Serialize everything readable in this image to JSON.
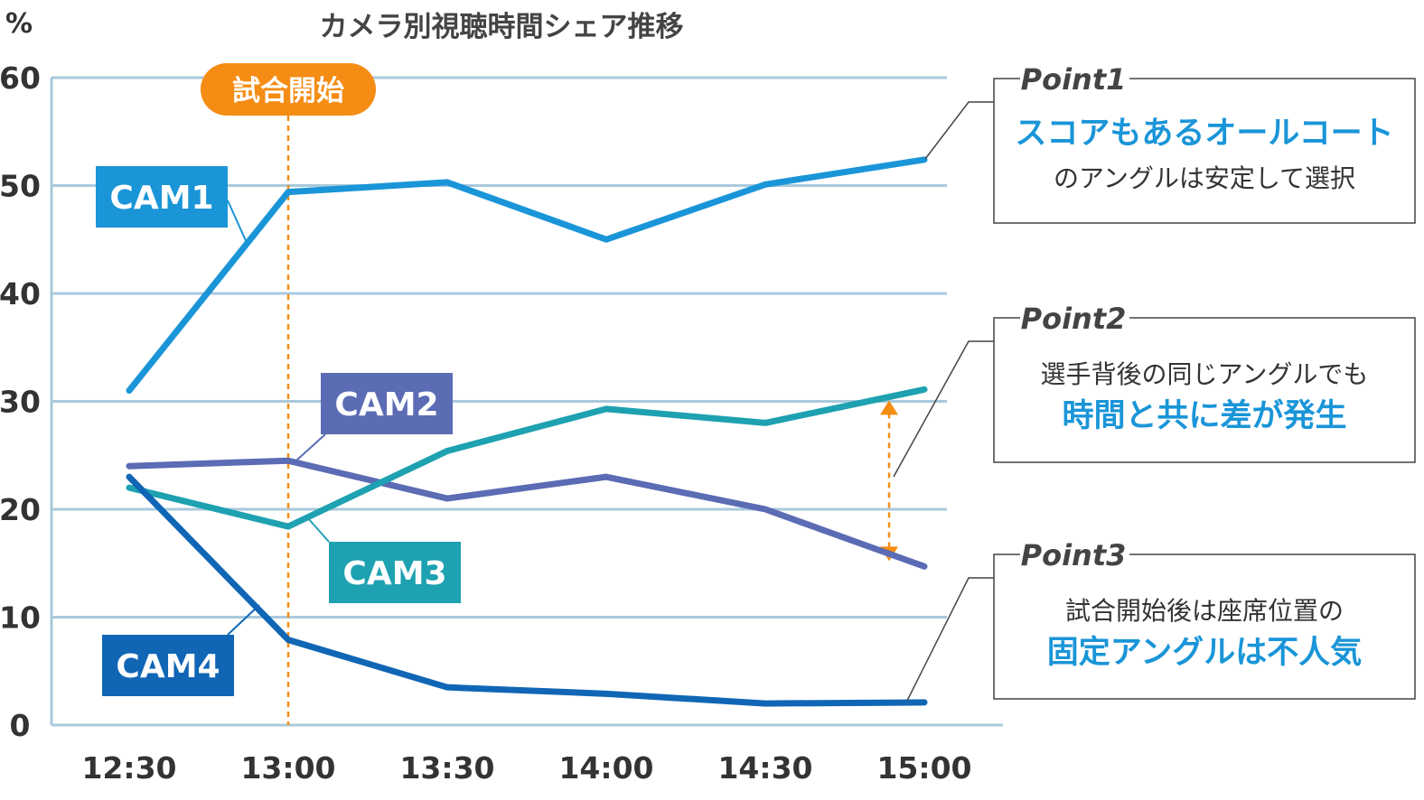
{
  "chart_data": {
    "type": "line",
    "title": "カメラ別視聴時間シェア推移",
    "ylabel": "%",
    "xlabel": "",
    "ylim": [
      0,
      60
    ],
    "yticks": [
      0,
      10,
      20,
      30,
      40,
      50,
      60
    ],
    "grid": true,
    "categories": [
      "12:30",
      "13:00",
      "13:30",
      "14:00",
      "14:30",
      "15:00"
    ],
    "series": [
      {
        "name": "CAM1",
        "color": "#1a95d8",
        "values": [
          31.0,
          49.4,
          50.3,
          45.0,
          50.1,
          52.4
        ]
      },
      {
        "name": "CAM2",
        "color": "#5b6bb4",
        "values": [
          24.0,
          24.5,
          21.0,
          23.0,
          20.0,
          14.7
        ]
      },
      {
        "name": "CAM3",
        "color": "#1ea1b1",
        "values": [
          22.0,
          18.4,
          25.4,
          29.3,
          28.0,
          31.1
        ]
      },
      {
        "name": "CAM4",
        "color": "#1066b5",
        "values": [
          23.0,
          7.9,
          3.5,
          2.9,
          2.0,
          2.1
        ]
      }
    ],
    "event_marker": {
      "x": "13:00",
      "label": "試合開始",
      "color": "#f58c14"
    },
    "gap_arrow": {
      "x": "15:00",
      "from": 31.1,
      "to": 14.7,
      "color": "#f58c14"
    },
    "points": [
      {
        "title": "Point1",
        "line1": "スコアもあるオールコート",
        "line2": "のアングルは安定して選択",
        "highlight_line": 1
      },
      {
        "title": "Point2",
        "line1": "選手背後の同じアングルでも",
        "line2": "時間と共に差が発生",
        "highlight_line": 2
      },
      {
        "title": "Point3",
        "line1": "試合開始後は座席位置の",
        "line2": "固定アングルは不人気",
        "highlight_line": 2
      }
    ],
    "colors": {
      "axis": "#a9c9dc",
      "grid": "#a9c9dc",
      "text": "#333333",
      "highlight": "#1a95d8",
      "box_border": "#444444"
    }
  }
}
